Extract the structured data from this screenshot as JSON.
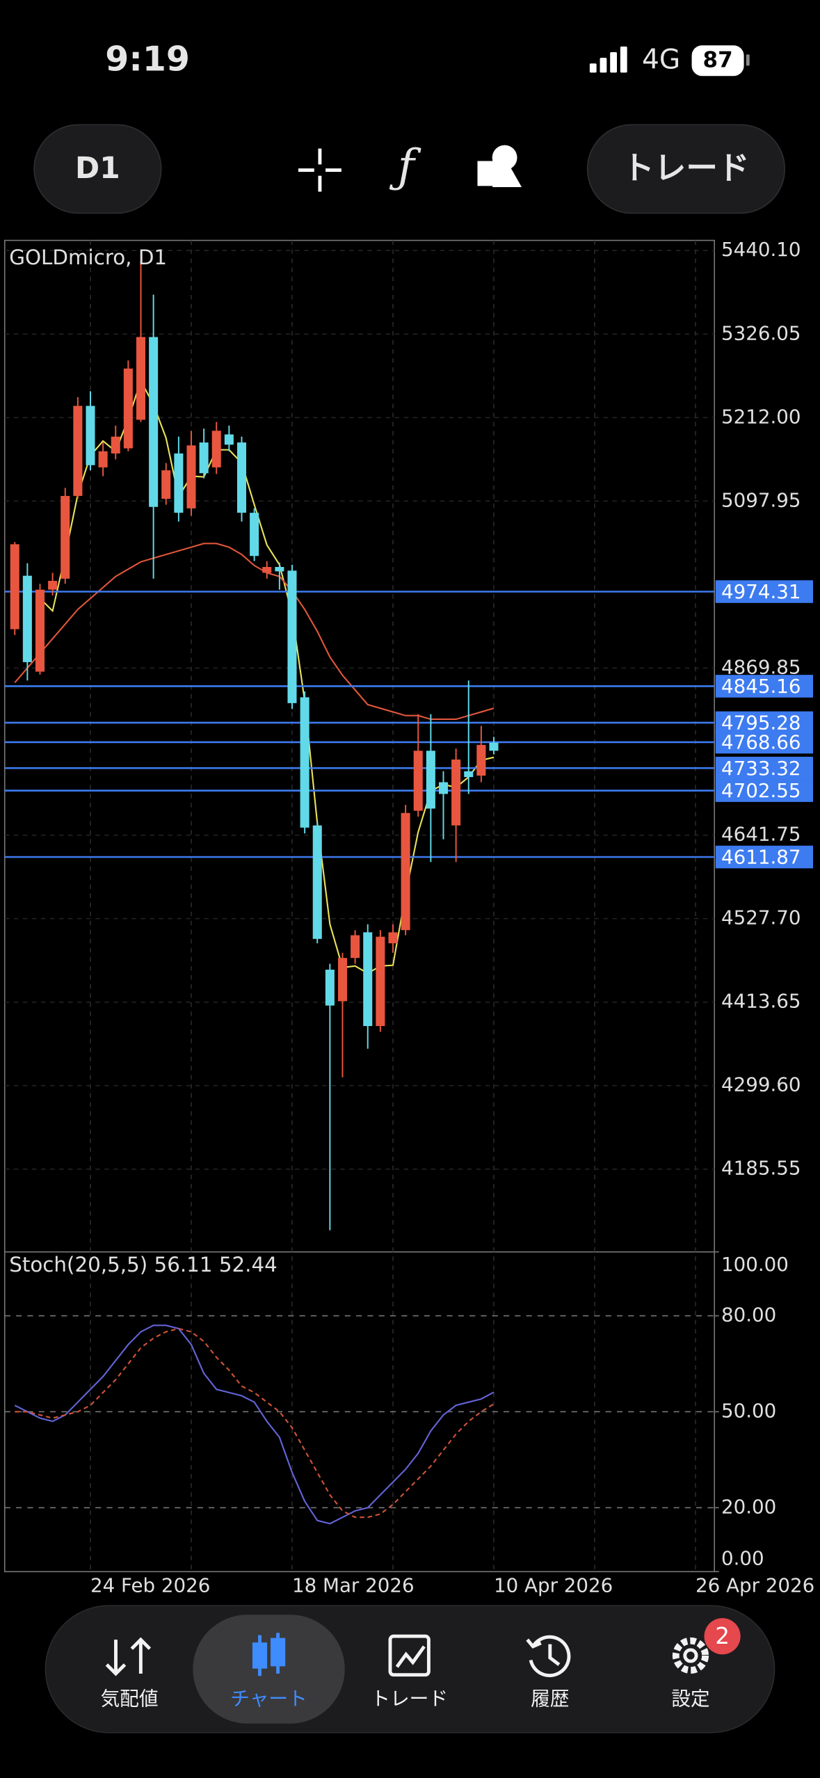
{
  "status_bar": {
    "time": "9:19",
    "network": "4G",
    "battery": "87"
  },
  "toolbar": {
    "timeframe": "D1",
    "trade_button": "トレード"
  },
  "chart_data": [
    {
      "type": "candlestick",
      "title": "GOLDmicro, D1",
      "open": [
        4923,
        4996,
        4865,
        4977,
        4992,
        5105,
        5228,
        5144,
        5163,
        5170,
        5209,
        5322,
        5101,
        5163,
        5088,
        5178,
        5144,
        5189,
        5178,
        5082,
        5000,
        5008,
        5003,
        4830,
        4655,
        4458,
        4415,
        4474,
        4509,
        4381,
        4494,
        4512,
        4675,
        4757,
        4714,
        4655,
        4729,
        4723,
        4768
      ],
      "high": [
        5042,
        5013,
        4985,
        5000,
        5116,
        5240,
        5248,
        5178,
        5201,
        5290,
        5426,
        5380,
        5150,
        5186,
        5194,
        5197,
        5206,
        5201,
        5186,
        5088,
        5016,
        5014,
        5011,
        4838,
        4660,
        4466,
        4481,
        4512,
        4520,
        4512,
        4520,
        4683,
        4807,
        4807,
        4729,
        4760,
        4853,
        4791,
        4776
      ],
      "low": [
        4915,
        4853,
        4861,
        4969,
        4985,
        5101,
        5140,
        5132,
        5155,
        5166,
        5206,
        4992,
        5093,
        5070,
        5078,
        5129,
        5135,
        5166,
        5070,
        5016,
        4992,
        4977,
        4814,
        4644,
        4494,
        4102,
        4311,
        4466,
        4350,
        4373,
        4481,
        4505,
        4667,
        4605,
        4636,
        4605,
        4698,
        4714,
        4752
      ],
      "close": [
        5039,
        4878,
        4977,
        4989,
        5105,
        5228,
        5147,
        5166,
        5186,
        5279,
        5322,
        5090,
        5140,
        5082,
        5174,
        5136,
        5194,
        5175,
        5082,
        5023,
        5008,
        5002,
        4822,
        4652,
        4500,
        4409,
        4474,
        4505,
        4381,
        4503,
        4509,
        4672,
        4757,
        4678,
        4698,
        4745,
        4721,
        4765,
        4757
      ],
      "up_color": "#e8563f",
      "down_color": "#62d9e8",
      "series": [
        {
          "color": "#e8e25a",
          "values": [
            null,
            null,
            4965,
            4948,
            5024,
            5107,
            5160,
            5180,
            5166,
            5210,
            5262,
            5230,
            5184,
            5104,
            5132,
            5131,
            5168,
            5168,
            5150,
            5093,
            5038,
            5011,
            4944,
            4825,
            4658,
            4520,
            4461,
            4463,
            4453,
            4463,
            4464,
            4561,
            4646,
            4702,
            4711,
            4707,
            4721,
            4744,
            4748
          ]
        },
        {
          "color": "#e0563a",
          "values": [
            4850,
            4870,
            4890,
            4910,
            4930,
            4950,
            4965,
            4980,
            4995,
            5005,
            5015,
            5020,
            5025,
            5030,
            5035,
            5040,
            5040,
            5035,
            5025,
            5010,
            5000,
            4995,
            4975,
            4950,
            4920,
            4885,
            4860,
            4840,
            4820,
            4815,
            4810,
            4805,
            4805,
            4800,
            4800,
            4800,
            4805,
            4810,
            4815
          ]
        }
      ],
      "levels": [
        4974.31,
        4845.16,
        4795.28,
        4768.66,
        4733.32,
        4702.55,
        4611.87
      ],
      "level_color": "#3d7bf0",
      "xlim": [
        -0.8,
        55.5
      ],
      "xticks": [
        {
          "value": 6,
          "label": "24 Feb 2026"
        },
        {
          "value": 22,
          "label": "18 Mar 2026"
        },
        {
          "value": 38,
          "label": "10 Apr 2026"
        },
        {
          "value": 54,
          "label": "26 Apr 2026"
        }
      ],
      "ylim": [
        4072.6,
        5454
      ],
      "yticks": [
        {
          "value": 5440.1,
          "label": "5440.10"
        },
        {
          "value": 5326.05,
          "label": "5326.05"
        },
        {
          "value": 5212,
          "label": "5212.00"
        },
        {
          "value": 5097.95,
          "label": "5097.95"
        },
        {
          "value": 4869.85,
          "label": "4869.85"
        },
        {
          "value": 4641.75,
          "label": "4641.75"
        },
        {
          "value": 4527.7,
          "label": "4527.70"
        },
        {
          "value": 4413.65,
          "label": "4413.65"
        },
        {
          "value": 4299.6,
          "label": "4299.60"
        },
        {
          "value": 4185.55,
          "label": "4185.55"
        }
      ],
      "grid": true
    },
    {
      "type": "line",
      "title": "Stoch(20,5,5)",
      "series": [
        {
          "color": "#6464d8",
          "values": [
            52,
            50,
            48,
            47,
            49,
            53,
            57,
            61,
            66,
            71,
            75,
            77,
            77,
            76,
            71,
            62,
            57,
            56,
            55,
            53,
            47,
            42,
            31,
            22,
            16,
            15,
            17,
            19,
            20,
            24,
            28,
            32,
            37,
            44,
            49,
            52,
            53,
            54,
            56.11
          ]
        },
        {
          "color": "#d0543a",
          "dashed": true,
          "values": [
            50,
            50,
            49,
            48,
            49,
            50,
            52,
            56,
            60,
            65,
            70,
            73,
            75,
            76,
            75,
            72,
            67,
            63,
            58,
            56,
            53,
            50,
            45,
            38,
            31,
            24,
            19,
            17,
            17,
            18,
            21,
            25,
            29,
            33,
            38,
            43,
            47,
            50,
            52.44
          ]
        }
      ],
      "levels": [
        80,
        50,
        20
      ],
      "ylim": [
        0,
        100
      ],
      "yticks": [
        {
          "value": 100,
          "label": "100.00"
        },
        {
          "value": 80,
          "label": "80.00"
        },
        {
          "value": 50,
          "label": "50.00"
        },
        {
          "value": 20,
          "label": "20.00"
        },
        {
          "value": 0,
          "label": "0.00"
        }
      ]
    }
  ],
  "tab_bar": {
    "items": [
      {
        "label": "気配値"
      },
      {
        "label": "チャート"
      },
      {
        "label": "トレード"
      },
      {
        "label": "履歴"
      },
      {
        "label": "設定"
      }
    ],
    "active": 1,
    "badge": "2"
  }
}
